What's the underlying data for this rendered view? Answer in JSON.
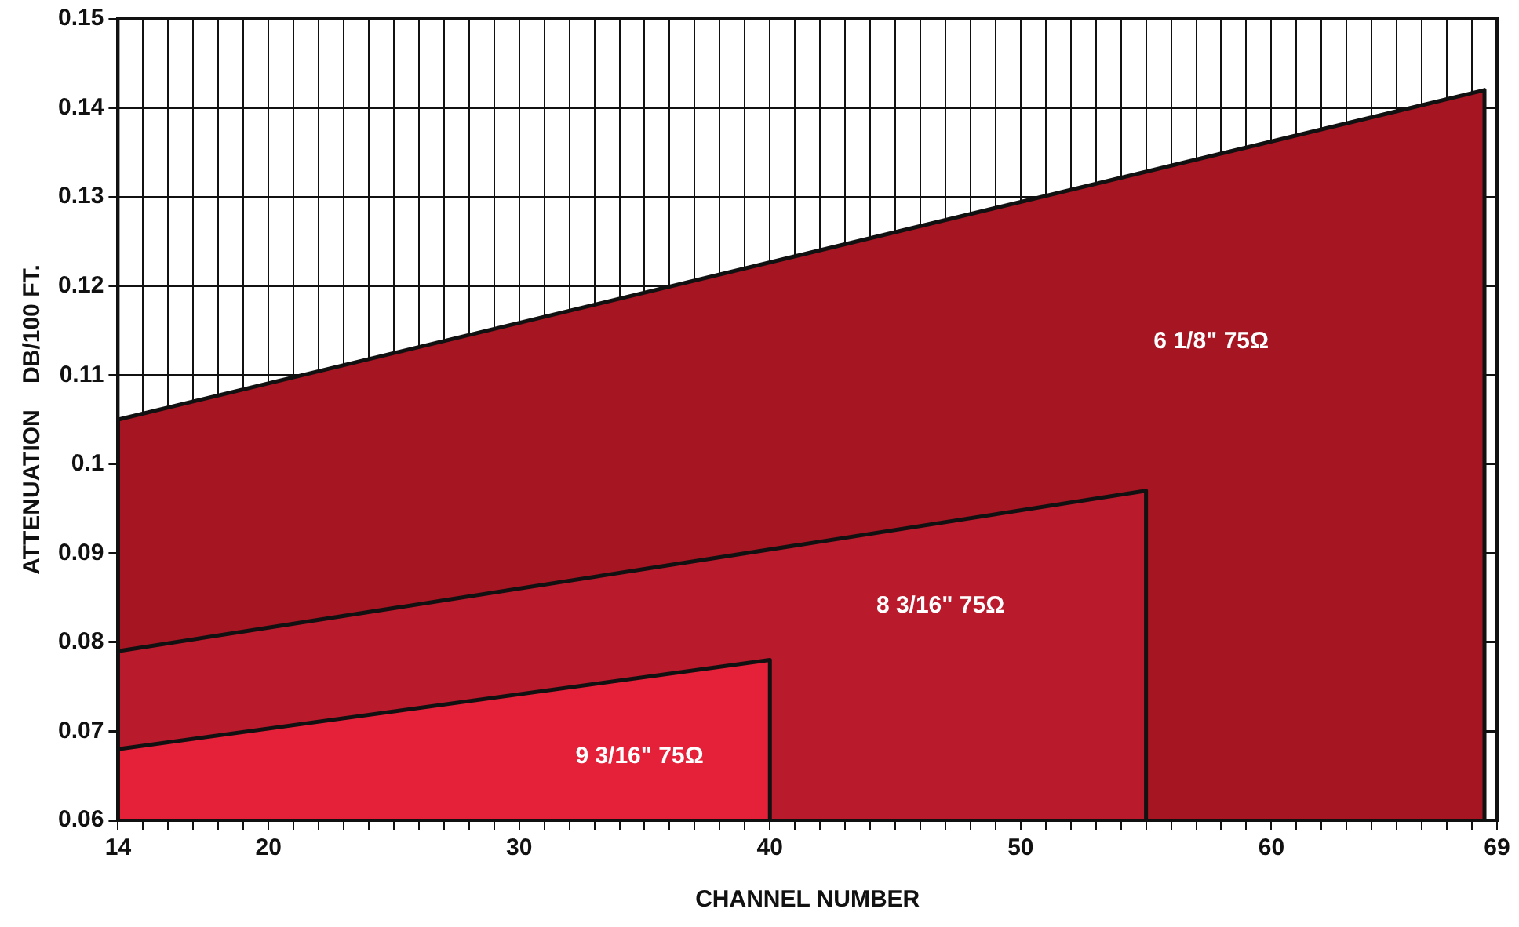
{
  "chart_data": {
    "type": "area",
    "xlabel": "CHANNEL NUMBER",
    "ylabel": "ATTENUATION    DB/100 FT.",
    "series": [
      {
        "name": "6 1/8\" 75Ω",
        "color": "#a51522",
        "x": [
          14,
          14,
          68.5,
          68.5
        ],
        "values": [
          0.06,
          0.105,
          0.142,
          0.06
        ]
      },
      {
        "name": "8 3/16\" 75Ω",
        "color": "#b91a2c",
        "x": [
          14,
          14,
          55,
          55
        ],
        "values": [
          0.06,
          0.079,
          0.097,
          0.06
        ]
      },
      {
        "name": "9 3/16\" 75Ω",
        "color": "#e42139",
        "x": [
          14,
          14,
          40,
          40
        ],
        "values": [
          0.06,
          0.068,
          0.078,
          0.06
        ]
      }
    ],
    "xlim": [
      14,
      69
    ],
    "xticks": [
      14,
      {
        "value": 15,
        "label": null
      },
      {
        "value": 16,
        "label": null
      },
      {
        "value": 17,
        "label": null
      },
      {
        "value": 18,
        "label": null
      },
      {
        "value": 19,
        "label": null
      },
      20,
      {
        "value": 21,
        "label": null
      },
      {
        "value": 22,
        "label": null
      },
      {
        "value": 23,
        "label": null
      },
      {
        "value": 24,
        "label": null
      },
      {
        "value": 25,
        "label": null
      },
      {
        "value": 26,
        "label": null
      },
      {
        "value": 27,
        "label": null
      },
      {
        "value": 28,
        "label": null
      },
      {
        "value": 29,
        "label": null
      },
      30,
      {
        "value": 31,
        "label": null
      },
      {
        "value": 32,
        "label": null
      },
      {
        "value": 33,
        "label": null
      },
      {
        "value": 34,
        "label": null
      },
      {
        "value": 35,
        "label": null
      },
      {
        "value": 36,
        "label": null
      },
      {
        "value": 37,
        "label": null
      },
      {
        "value": 38,
        "label": null
      },
      {
        "value": 39,
        "label": null
      },
      40,
      {
        "value": 41,
        "label": null
      },
      {
        "value": 42,
        "label": null
      },
      {
        "value": 43,
        "label": null
      },
      {
        "value": 44,
        "label": null
      },
      {
        "value": 45,
        "label": null
      },
      {
        "value": 46,
        "label": null
      },
      {
        "value": 47,
        "label": null
      },
      {
        "value": 48,
        "label": null
      },
      {
        "value": 49,
        "label": null
      },
      50,
      {
        "value": 51,
        "label": null
      },
      {
        "value": 52,
        "label": null
      },
      {
        "value": 53,
        "label": null
      },
      {
        "value": 54,
        "label": null
      },
      {
        "value": 55,
        "label": null
      },
      {
        "value": 56,
        "label": null
      },
      {
        "value": 57,
        "label": null
      },
      {
        "value": 58,
        "label": null
      },
      {
        "value": 59,
        "label": null
      },
      60,
      {
        "value": 61,
        "label": null
      },
      {
        "value": 62,
        "label": null
      },
      {
        "value": 63,
        "label": null
      },
      {
        "value": 64,
        "label": null
      },
      {
        "value": 65,
        "label": null
      },
      {
        "value": 66,
        "label": null
      },
      {
        "value": 67,
        "label": null
      },
      {
        "value": 68,
        "label": null
      },
      69
    ],
    "ylim": [
      0.06,
      0.15
    ],
    "yticks": [
      0.06,
      0.07,
      0.08,
      0.09,
      0.1,
      0.11,
      0.12,
      0.13,
      0.14,
      0.15
    ],
    "grid": true,
    "legend": false,
    "marker": "none",
    "line_style": "solid"
  }
}
